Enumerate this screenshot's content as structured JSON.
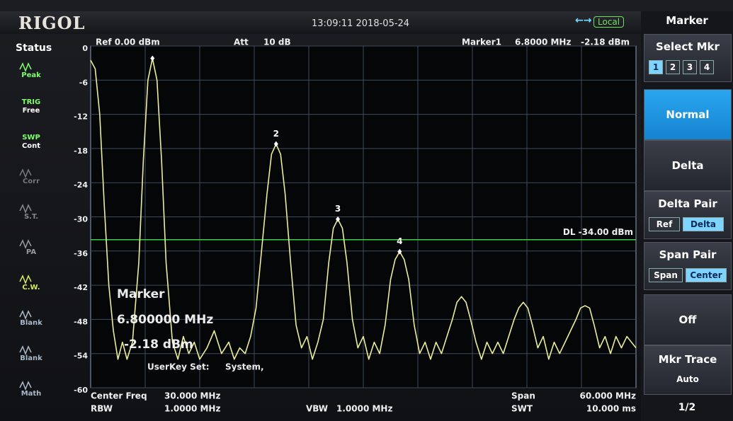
{
  "header": {
    "brand": "RIGOL",
    "datetime": "13:09:11 2018-05-24",
    "remote": "Local"
  },
  "status": {
    "title": "Status",
    "items": [
      {
        "lines": [
          "Peak"
        ],
        "color": "#7dff6a"
      },
      {
        "lines": [
          "TRIG",
          "Free"
        ],
        "color": "#7dff6a"
      },
      {
        "lines": [
          "SWP",
          "Cont"
        ],
        "color": "#7dff6a"
      },
      {
        "lines": [
          "Corr"
        ],
        "color": "#777777"
      },
      {
        "lines": [
          "S.T."
        ],
        "color": "#888888"
      },
      {
        "lines": [
          "PA"
        ],
        "color": "#999999"
      },
      {
        "lines": [
          "C.W."
        ],
        "color": "#d8e85a"
      },
      {
        "lines": [
          "Blank"
        ],
        "color": "#aab8c8"
      },
      {
        "lines": [
          "Blank"
        ],
        "color": "#aab8c8"
      },
      {
        "lines": [
          "Math"
        ],
        "color": "#aab8c8"
      }
    ]
  },
  "plot": {
    "ref": "Ref 0.00 dBm",
    "att_label": "Att",
    "att": "10 dB",
    "marker_readout": {
      "name": "Marker1",
      "freq": "6.8000 MHz",
      "level": "-2.18 dBm"
    },
    "xlim": [
      0,
      60
    ],
    "ylim": [
      -60,
      0
    ],
    "yticks": [
      0,
      -6,
      -12,
      -18,
      -24,
      -30,
      -36,
      -42,
      -48,
      -54,
      -60
    ],
    "grid": true,
    "trace": {
      "color": "#ecec9a",
      "points": [
        [
          0,
          -2.5
        ],
        [
          0.5,
          -4
        ],
        [
          1.0,
          -12
        ],
        [
          1.5,
          -28
        ],
        [
          2.0,
          -42
        ],
        [
          2.5,
          -50
        ],
        [
          3.0,
          -55
        ],
        [
          3.5,
          -52
        ],
        [
          4.0,
          -55
        ],
        [
          4.6,
          -52
        ],
        [
          5.3,
          -38
        ],
        [
          5.8,
          -20
        ],
        [
          6.3,
          -6
        ],
        [
          6.8,
          -2.18
        ],
        [
          7.3,
          -6
        ],
        [
          7.8,
          -20
        ],
        [
          8.3,
          -38
        ],
        [
          9.0,
          -52
        ],
        [
          9.6,
          -55
        ],
        [
          10.2,
          -51
        ],
        [
          10.8,
          -54
        ],
        [
          11.4,
          -52
        ],
        [
          12.0,
          -55
        ],
        [
          12.8,
          -53
        ],
        [
          13.6,
          -50
        ],
        [
          14.4,
          -54
        ],
        [
          15.2,
          -52
        ],
        [
          15.8,
          -55
        ],
        [
          16.4,
          -53
        ],
        [
          17.0,
          -54
        ],
        [
          17.6,
          -51
        ],
        [
          18.2,
          -46
        ],
        [
          18.8,
          -36
        ],
        [
          19.4,
          -26
        ],
        [
          19.9,
          -19
        ],
        [
          20.4,
          -17.2
        ],
        [
          20.9,
          -19
        ],
        [
          21.4,
          -26
        ],
        [
          22.0,
          -38
        ],
        [
          22.6,
          -49
        ],
        [
          23.2,
          -53
        ],
        [
          23.8,
          -51
        ],
        [
          24.4,
          -55
        ],
        [
          25.0,
          -52
        ],
        [
          25.6,
          -48
        ],
        [
          26.2,
          -38
        ],
        [
          26.7,
          -32
        ],
        [
          27.2,
          -30.4
        ],
        [
          27.7,
          -32
        ],
        [
          28.2,
          -38
        ],
        [
          28.8,
          -48
        ],
        [
          29.4,
          -53
        ],
        [
          30.0,
          -51
        ],
        [
          30.6,
          -55
        ],
        [
          31.2,
          -52
        ],
        [
          31.8,
          -54
        ],
        [
          32.4,
          -49
        ],
        [
          33.0,
          -41
        ],
        [
          33.5,
          -37.5
        ],
        [
          34.0,
          -36.1
        ],
        [
          34.5,
          -37.5
        ],
        [
          35.0,
          -41
        ],
        [
          35.6,
          -49
        ],
        [
          36.2,
          -54
        ],
        [
          36.8,
          -52
        ],
        [
          37.4,
          -55
        ],
        [
          38.0,
          -52
        ],
        [
          38.6,
          -54
        ],
        [
          39.2,
          -51
        ],
        [
          39.8,
          -48
        ],
        [
          40.3,
          -45
        ],
        [
          40.8,
          -44
        ],
        [
          41.3,
          -45
        ],
        [
          41.8,
          -48
        ],
        [
          42.4,
          -52
        ],
        [
          43.0,
          -55
        ],
        [
          43.6,
          -52
        ],
        [
          44.2,
          -54
        ],
        [
          44.8,
          -52
        ],
        [
          45.4,
          -54
        ],
        [
          46.0,
          -51
        ],
        [
          46.6,
          -48
        ],
        [
          47.1,
          -46
        ],
        [
          47.6,
          -45
        ],
        [
          48.1,
          -46
        ],
        [
          48.6,
          -49
        ],
        [
          49.2,
          -53
        ],
        [
          49.8,
          -51
        ],
        [
          50.4,
          -55
        ],
        [
          51.0,
          -52
        ],
        [
          51.6,
          -54
        ],
        [
          52.2,
          -52
        ],
        [
          52.8,
          -50
        ],
        [
          53.4,
          -48
        ],
        [
          53.9,
          -46
        ],
        [
          54.4,
          -45.6
        ],
        [
          54.9,
          -46
        ],
        [
          55.4,
          -49
        ],
        [
          56.0,
          -53
        ],
        [
          56.6,
          -51
        ],
        [
          57.2,
          -54
        ],
        [
          57.8,
          -51
        ],
        [
          58.4,
          -53
        ],
        [
          59.0,
          -51
        ],
        [
          60.0,
          -53
        ]
      ]
    },
    "markers": [
      {
        "x": 6.8,
        "y": -2.18
      },
      {
        "label": "2",
        "x": 20.4,
        "y": -17.2
      },
      {
        "label": "3",
        "x": 27.2,
        "y": -30.4
      },
      {
        "label": "4",
        "x": 34.0,
        "y": -36.1
      }
    ],
    "display_line": {
      "value": -34,
      "label": "DL -34.00 dBm",
      "color": "#3ecf3e"
    }
  },
  "overlay": {
    "title": "Marker",
    "freq": "6.800000 MHz",
    "level": "-2.18 dBm",
    "userkey": "UserKey Set:",
    "userkey_value": "System,"
  },
  "footer": {
    "center_label": "Center Freq",
    "center": "30.000 MHz",
    "rbw_label": "RBW",
    "rbw": "1.0000 MHz",
    "vbw_label": "VBW",
    "vbw": "1.0000 MHz",
    "span_label": "Span",
    "span": "60.000 MHz",
    "swt_label": "SWT",
    "swt": "10.000 ms"
  },
  "menu": {
    "title": "Marker",
    "select": {
      "label": "Select Mkr",
      "options": [
        "1",
        "2",
        "3",
        "4"
      ],
      "active": 0
    },
    "normal": "Normal",
    "delta": "Delta",
    "delta_pair": {
      "label": "Delta Pair",
      "options": [
        "Ref",
        "Delta"
      ],
      "active": 1
    },
    "span_pair": {
      "label": "Span Pair",
      "options": [
        "Span",
        "Center"
      ],
      "active": 1
    },
    "off": "Off",
    "mkr_trace": {
      "label": "Mkr Trace",
      "value": "Auto"
    },
    "page": "1/2"
  }
}
